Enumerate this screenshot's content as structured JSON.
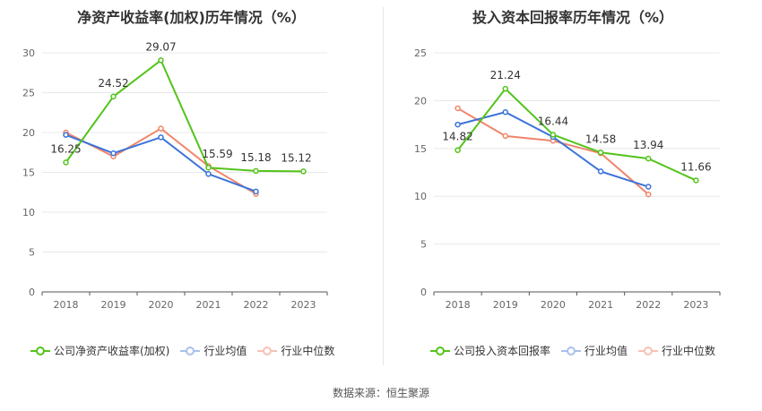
{
  "charts": [
    {
      "title": "净资产收益率(加权)历年情况（%）",
      "legend": [
        "公司净资产收益率(加权)",
        "行业均值",
        "行业中位数"
      ]
    },
    {
      "title": "投入资本回报率历年情况（%）",
      "legend": [
        "公司投入资本回报率",
        "行业均值",
        "行业中位数"
      ]
    }
  ],
  "source": "数据来源：恒生聚源",
  "colors": {
    "company": "#52c41a",
    "mean": "#3b73d9",
    "median": "#f0866a"
  },
  "chart_data": [
    {
      "type": "line",
      "title": "净资产收益率(加权)历年情况（%）",
      "categories": [
        "2018",
        "2019",
        "2020",
        "2021",
        "2022",
        "2023"
      ],
      "ylim": [
        0,
        30
      ],
      "yticks": [
        0,
        5,
        10,
        15,
        20,
        25,
        30
      ],
      "grid": true,
      "legend_position": "bottom",
      "series": [
        {
          "name": "公司净资产收益率(加权)",
          "values": [
            16.25,
            24.52,
            29.07,
            15.59,
            15.18,
            15.12
          ],
          "labels": [
            "16.25",
            "24.52",
            "29.07",
            "15.59",
            "15.18",
            "15.12"
          ]
        },
        {
          "name": "行业均值",
          "values": [
            19.7,
            17.4,
            19.4,
            14.8,
            12.6,
            null
          ]
        },
        {
          "name": "行业中位数",
          "values": [
            20.0,
            17.0,
            20.5,
            15.8,
            12.3,
            null
          ]
        }
      ]
    },
    {
      "type": "line",
      "title": "投入资本回报率历年情况（%）",
      "categories": [
        "2018",
        "2019",
        "2020",
        "2021",
        "2022",
        "2023"
      ],
      "ylim": [
        0,
        25
      ],
      "yticks": [
        0,
        5,
        10,
        15,
        20,
        25
      ],
      "grid": true,
      "legend_position": "bottom",
      "series": [
        {
          "name": "公司投入资本回报率",
          "values": [
            14.82,
            21.24,
            16.44,
            14.58,
            13.94,
            11.66
          ],
          "labels": [
            "14.82",
            "21.24",
            "16.44",
            "14.58",
            "13.94",
            "11.66"
          ]
        },
        {
          "name": "行业均值",
          "values": [
            17.5,
            18.8,
            16.2,
            12.6,
            11.0,
            null
          ]
        },
        {
          "name": "行业中位数",
          "values": [
            19.2,
            16.3,
            15.8,
            14.5,
            10.2,
            null
          ]
        }
      ]
    }
  ]
}
